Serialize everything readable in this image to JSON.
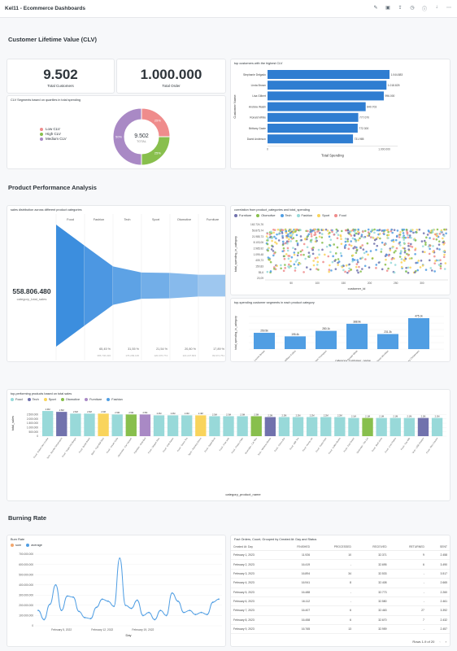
{
  "app": {
    "title": "Kel11 - Ecommerce Dashboards",
    "icons": [
      "pencil-icon",
      "archive-icon",
      "share-icon",
      "clock-icon",
      "info-icon",
      "download-icon",
      "more-icon"
    ]
  },
  "sections": {
    "clv": "Customer Lifetime Value (CLV)",
    "product": "Product Performance Analysis",
    "burning": "Burning Rate"
  },
  "kpis": {
    "total_customers": {
      "value": "9.502",
      "label": "Total Customers"
    },
    "total_order": {
      "value": "1.000.000",
      "label": "Total Order"
    }
  },
  "clv_donut": {
    "title": "CLV Segments based on quartiles in total spending",
    "center_value": "9.502",
    "center_label": "TOTAL",
    "legend": [
      {
        "name": "Low CLV",
        "color": "#ef8c8c"
      },
      {
        "name": "High CLV",
        "color": "#88bf4d"
      },
      {
        "name": "Medium CLV",
        "color": "#a989c5"
      }
    ],
    "slices": [
      {
        "name": "Low CLV",
        "value": 25,
        "label": "25%",
        "color": "#ef8c8c"
      },
      {
        "name": "High CLV",
        "value": 25,
        "label": "25%",
        "color": "#88bf4d"
      },
      {
        "name": "Medium CLV",
        "value": 50,
        "label": "50%",
        "color": "#a989c5"
      }
    ]
  },
  "top_customers": {
    "title": "top customers with the highest CLV",
    "ylabel": "Customer Name",
    "xlabel": "Total Spending",
    "xtick": "1.000.000",
    "rows": [
      {
        "name": "Stephanie Delgado",
        "value": 1044883,
        "label": "1.044.883"
      },
      {
        "name": "Linda Brown",
        "value": 1018825,
        "label": "1.018.825"
      },
      {
        "name": "Lisa Gilbert",
        "value": 996000,
        "label": "996.000"
      },
      {
        "name": "Andrew Walsh",
        "value": 840703,
        "label": "840.703"
      },
      {
        "name": "Ronald White",
        "value": 777070,
        "label": "777.070"
      },
      {
        "name": "Brittany Gaste",
        "value": 772300,
        "label": "772.300"
      },
      {
        "name": "David Anderson",
        "value": 731985,
        "label": "731.985"
      }
    ]
  },
  "funnel": {
    "title": "sales distribution across different product categories",
    "value": "558.806.480",
    "value_label": "category_total_sales",
    "steps": [
      {
        "name": "Food",
        "pct": 100,
        "pct_label": "",
        "sub": ""
      },
      {
        "name": "Fashion",
        "pct": 65.45,
        "pct_label": "65,45 %",
        "sub": "365.746.226"
      },
      {
        "name": "Tech",
        "pct": 31.55,
        "pct_label": "31,55 %",
        "sub": "176.299.135"
      },
      {
        "name": "Sport",
        "pct": 21.54,
        "pct_label": "21,54 %",
        "sub": "120.376.774"
      },
      {
        "name": "Otomotive",
        "pct": 20.8,
        "pct_label": "20,80 %",
        "sub": "116.227.803"
      },
      {
        "name": "Furniture",
        "pct": 17.89,
        "pct_label": "17,89 %",
        "sub": "99.971.751"
      }
    ]
  },
  "scatter": {
    "title": "correlation from product_categories and total_spending",
    "legend": [
      {
        "name": "Furniture",
        "color": "#7172ad"
      },
      {
        "name": "Otomotive",
        "color": "#88bf4d"
      },
      {
        "name": "Tech",
        "color": "#509ee3"
      },
      {
        "name": "Fashion",
        "color": "#98d9d9"
      },
      {
        "name": "Sport",
        "color": "#f9d45c"
      },
      {
        "name": "Food",
        "color": "#ef8c8c"
      }
    ],
    "ylabel": "total_spending_in_category",
    "xlabel": "customer_id",
    "yticks": [
      "162.724,76",
      "59.875,74",
      "21.985,73",
      "8.103,06",
      "2.985,92",
      "1.099,48",
      "405,73",
      "150,83",
      "55,6",
      "20,09"
    ],
    "xticks": [
      "50",
      "100",
      "150",
      "200",
      "250",
      "300"
    ]
  },
  "segments": {
    "title": "top-spending customer segments in each product category",
    "ylabel": "total_spending_in_category",
    "xlabel": "category_customer_name",
    "bars": [
      {
        "name": "Fashion - Lauren Brown",
        "value": 250.5,
        "label": "250.5k"
      },
      {
        "name": "Otomotive - William Collins",
        "value": 195.4,
        "label": "195.4k"
      },
      {
        "name": "Tech - Robert Thompson",
        "value": 280.1,
        "label": "280.1k"
      },
      {
        "name": "Fashion - Ronald White",
        "value": 388.9,
        "label": "388.9k"
      },
      {
        "name": "Sport - Kathleen Mcmillan",
        "value": 231.3,
        "label": "231.3k"
      },
      {
        "name": "Food - Lindsey Christensen",
        "value": 475.1,
        "label": "475.1k"
      }
    ]
  },
  "top_products": {
    "title": "top-performing products based on total sales",
    "legend": [
      {
        "name": "Food",
        "color": "#98d9d9"
      },
      {
        "name": "Tech",
        "color": "#7172ad"
      },
      {
        "name": "Sport",
        "color": "#f9d45c"
      },
      {
        "name": "Otomotive",
        "color": "#88bf4d"
      },
      {
        "name": "Furniture",
        "color": "#a989c5"
      },
      {
        "name": "Fashion",
        "color": "#509ee3"
      }
    ],
    "ylabel": "total_sales",
    "xlabel": "category_product_name",
    "yticks": [
      "2.500.000",
      "2.000.000",
      "1.500.000",
      "1.000.000",
      "500.000",
      "0"
    ],
    "bars": [
      {
        "name": "Food - Robert Dev Cookie",
        "value": 2.9,
        "label": "2.9M",
        "color": "#98d9d9"
      },
      {
        "name": "Tech - Wonder Smartwatch",
        "value": 2.8,
        "label": "2.8M",
        "color": "#7172ad"
      },
      {
        "name": "Food - Vegan Hot Burger",
        "value": 2.6,
        "label": "2.6M",
        "color": "#98d9d9"
      },
      {
        "name": "Food - Bottle Water",
        "value": 2.6,
        "label": "2.6M",
        "color": "#98d9d9"
      },
      {
        "name": "Sport - Yoga Ball Stick",
        "value": 2.6,
        "label": "2.6M",
        "color": "#f9d45c"
      },
      {
        "name": "Food - Cream Soda",
        "value": 2.5,
        "label": "2.5M",
        "color": "#98d9d9"
      },
      {
        "name": "Otomotive - Car Vacuum",
        "value": 2.5,
        "label": "2.5M",
        "color": "#88bf4d"
      },
      {
        "name": "Furniture - Sofa Bed",
        "value": 2.5,
        "label": "2.5M",
        "color": "#a989c5"
      },
      {
        "name": "Food - Organic Rice",
        "value": 2.4,
        "label": "2.4M",
        "color": "#98d9d9"
      },
      {
        "name": "Food - Chili Sauce",
        "value": 2.4,
        "label": "2.4M",
        "color": "#98d9d9"
      },
      {
        "name": "Food - Green Tea",
        "value": 2.4,
        "label": "2.4M",
        "color": "#98d9d9"
      },
      {
        "name": "Sport - Running Shoes",
        "value": 2.4,
        "label": "2.4M",
        "color": "#f9d45c"
      },
      {
        "name": "Food - Salad Bowl",
        "value": 2.3,
        "label": "2.3M",
        "color": "#98d9d9"
      },
      {
        "name": "Food - Fruit Jelly",
        "value": 2.3,
        "label": "2.3M",
        "color": "#98d9d9"
      },
      {
        "name": "Food - Potato Chips",
        "value": 2.3,
        "label": "2.3M",
        "color": "#98d9d9"
      },
      {
        "name": "Otomotive - Car Wax",
        "value": 2.3,
        "label": "2.3M",
        "color": "#88bf4d"
      },
      {
        "name": "Tech - Wireless Mouse",
        "value": 2.2,
        "label": "2.2M",
        "color": "#7172ad"
      },
      {
        "name": "Food - Choco Bar",
        "value": 2.2,
        "label": "2.2M",
        "color": "#98d9d9"
      },
      {
        "name": "Food - Milk Tea",
        "value": 2.2,
        "label": "2.2M",
        "color": "#98d9d9"
      },
      {
        "name": "Food - Honey Jar",
        "value": 2.2,
        "label": "2.2M",
        "color": "#98d9d9"
      },
      {
        "name": "Food - Pasta Pack",
        "value": 2.2,
        "label": "2.2M",
        "color": "#98d9d9"
      },
      {
        "name": "Food - Coffee Beans",
        "value": 2.2,
        "label": "2.2M",
        "color": "#98d9d9"
      },
      {
        "name": "Food - Fish Snack",
        "value": 2.1,
        "label": "2.1M",
        "color": "#98d9d9"
      },
      {
        "name": "Otomotive - Tire Gel",
        "value": 2.1,
        "label": "2.1M",
        "color": "#88bf4d"
      },
      {
        "name": "Food - Beef Jerky",
        "value": 2.1,
        "label": "2.1M",
        "color": "#98d9d9"
      },
      {
        "name": "Food - Corn Flakes",
        "value": 2.1,
        "label": "2.1M",
        "color": "#98d9d9"
      },
      {
        "name": "Food - Soy Milk",
        "value": 2.1,
        "label": "2.1M",
        "color": "#98d9d9"
      },
      {
        "name": "Tech - USB Charger",
        "value": 2.1,
        "label": "2.1M",
        "color": "#7172ad"
      },
      {
        "name": "Food - Rice Cracker",
        "value": 2.1,
        "label": "2.1M",
        "color": "#98d9d9"
      }
    ]
  },
  "burn_rate": {
    "title": "Burn Rate",
    "legend": [
      {
        "name": "sum",
        "color": "#f2a86f"
      },
      {
        "name": "average",
        "color": "#509ee3"
      }
    ],
    "xlabel": "Day",
    "yticks": [
      "700.000.000",
      "600.000.000",
      "500.000.000",
      "400.000.000",
      "300.000.000",
      "200.000.000",
      "100.000.000",
      "0"
    ],
    "xticks": [
      "February 5, 2022",
      "February 12, 2022",
      "February 19, 2022"
    ],
    "values": [
      150,
      60,
      210,
      400,
      150,
      290,
      280,
      140,
      80,
      70,
      180,
      260,
      240,
      190,
      660,
      200,
      170,
      250,
      100,
      130,
      60,
      150,
      100,
      320,
      240,
      130,
      150,
      110,
      130,
      110,
      230,
      260
    ]
  },
  "fact_orders": {
    "title": "Fact Orders, Count, Grouped by Created At: Day and Status",
    "columns": [
      "Created At: Day",
      "FINISHED",
      "PROCESSED",
      "RECEIVED",
      "RETURNED",
      "SENT"
    ],
    "rows": [
      [
        "February 1, 2023",
        "11.926",
        "10",
        "32.371",
        "9",
        "2.458"
      ],
      [
        "February 2, 2023",
        "16.419",
        "-",
        "32.695",
        "6",
        "3.490"
      ],
      [
        "February 3, 2023",
        "16.894",
        "34",
        "32.533",
        "-",
        "3.517"
      ],
      [
        "February 4, 2023",
        "16.941",
        "8",
        "32.408",
        "-",
        "2.665"
      ],
      [
        "February 5, 2023",
        "16.488",
        "-",
        "32.773",
        "-",
        "2.260"
      ],
      [
        "February 6, 2023",
        "16.112",
        "-",
        "32.580",
        "-",
        "2.461"
      ],
      [
        "February 7, 2023",
        "16.407",
        "6",
        "32.463",
        "27",
        "3.392"
      ],
      [
        "February 8, 2023",
        "16.458",
        "6",
        "32.670",
        "7",
        "2.432"
      ],
      [
        "February 9, 2023",
        "16.765",
        "13",
        "32.959",
        "-",
        "2.457"
      ]
    ],
    "pager": "Rows 1-9 of 20"
  }
}
